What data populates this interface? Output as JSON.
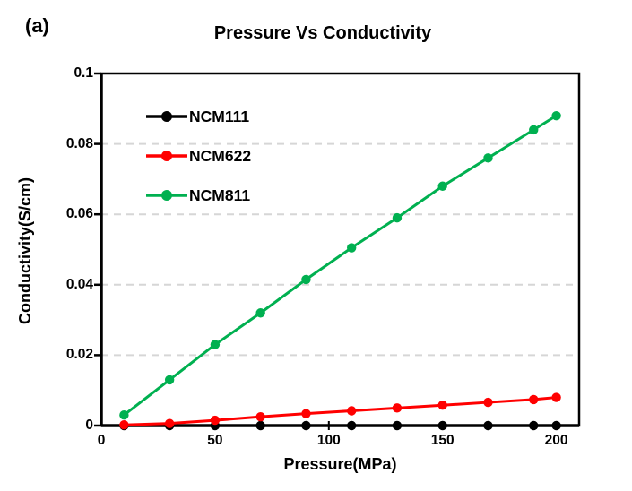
{
  "panel_label": "(a)",
  "chart_data": {
    "type": "line",
    "title": "Pressure Vs Conductivity",
    "xlabel": "Pressure(MPa)",
    "ylabel": "Conductivity(S/cm)",
    "xlim": [
      0,
      210
    ],
    "ylim": [
      0,
      0.1
    ],
    "x_ticks": [
      0,
      50,
      100,
      150,
      200
    ],
    "x_tick_labels": [
      "0",
      "50",
      "100",
      "150",
      "200"
    ],
    "y_ticks": [
      0,
      0.02,
      0.04,
      0.06,
      0.08,
      0.1
    ],
    "y_tick_labels": [
      "0",
      "0.02",
      "0.04",
      "0.06",
      "0.08",
      "0.1"
    ],
    "grid": "horizontal-dashed",
    "legend_position": "top-left-inside",
    "x": [
      10,
      30,
      50,
      70,
      90,
      110,
      130,
      150,
      170,
      190,
      200
    ],
    "series": [
      {
        "name": "NCM111",
        "color": "#000000",
        "values": [
          0,
          0,
          0,
          0,
          0,
          0,
          0,
          0,
          0,
          0,
          0
        ]
      },
      {
        "name": "NCM622",
        "color": "#FF0000",
        "values": [
          0.0002,
          0.0006,
          0.0015,
          0.0025,
          0.0034,
          0.0042,
          0.005,
          0.0058,
          0.0066,
          0.0074,
          0.008
        ]
      },
      {
        "name": "NCM811",
        "color": "#00B050",
        "values": [
          0.003,
          0.013,
          0.023,
          0.032,
          0.0415,
          0.0505,
          0.059,
          0.068,
          0.076,
          0.084,
          0.088
        ]
      }
    ],
    "colors": {
      "grid": "#D6D6D6",
      "axis": "#000000",
      "background": "#FFFFFF"
    }
  }
}
